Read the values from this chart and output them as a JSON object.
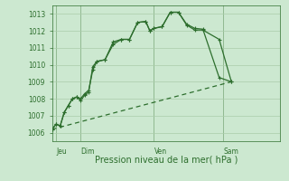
{
  "title": "",
  "xlabel": "Pression niveau de la mer( hPa )",
  "background_color": "#cce8d0",
  "grid_color": "#aaccaa",
  "line_color": "#2d6e2d",
  "ylim": [
    1005.5,
    1013.5
  ],
  "yticks": [
    1006,
    1007,
    1008,
    1009,
    1010,
    1011,
    1012,
    1013
  ],
  "xlim": [
    0,
    28
  ],
  "day_positions": [
    0.5,
    3.5,
    12.5,
    21.0
  ],
  "day_vlines": [
    0.5,
    3.5,
    12.5,
    21.0
  ],
  "day_labels": [
    "Jeu",
    "Dim",
    "Ven",
    "Sam"
  ],
  "series1_x": [
    0,
    0.5,
    1.0,
    1.5,
    2.0,
    2.5,
    3.0,
    3.5,
    4.0,
    4.5,
    5.0,
    5.5,
    6.5,
    7.5,
    8.5,
    9.5,
    10.5,
    11.5,
    12.0,
    12.5,
    13.5,
    14.5,
    15.5,
    16.5,
    17.5,
    18.5,
    20.5,
    22.0
  ],
  "series1_y": [
    1006.2,
    1006.5,
    1006.4,
    1007.2,
    1007.6,
    1008.0,
    1008.1,
    1007.9,
    1008.2,
    1008.4,
    1009.9,
    1010.2,
    1010.3,
    1011.35,
    1011.5,
    1011.5,
    1012.5,
    1012.55,
    1012.0,
    1012.15,
    1012.25,
    1013.1,
    1013.1,
    1012.4,
    1012.15,
    1012.1,
    1009.25,
    1009.0
  ],
  "series2_x": [
    0,
    0.5,
    1.0,
    1.5,
    2.0,
    2.5,
    3.0,
    3.5,
    4.0,
    4.5,
    5.0,
    5.5,
    6.5,
    7.5,
    8.5,
    9.5,
    10.5,
    11.5,
    12.0,
    12.5,
    13.5,
    14.5,
    15.5,
    16.5,
    17.5,
    18.5,
    20.5,
    22.0
  ],
  "series2_y": [
    1006.2,
    1006.5,
    1006.4,
    1007.2,
    1007.6,
    1008.0,
    1008.1,
    1008.0,
    1008.3,
    1008.5,
    1009.7,
    1010.2,
    1010.3,
    1011.2,
    1011.5,
    1011.5,
    1012.5,
    1012.55,
    1012.0,
    1012.15,
    1012.25,
    1013.1,
    1013.1,
    1012.35,
    1012.05,
    1012.05,
    1011.5,
    1009.0
  ],
  "series3_x": [
    0,
    22.0
  ],
  "series3_y": [
    1006.2,
    1009.0
  ]
}
